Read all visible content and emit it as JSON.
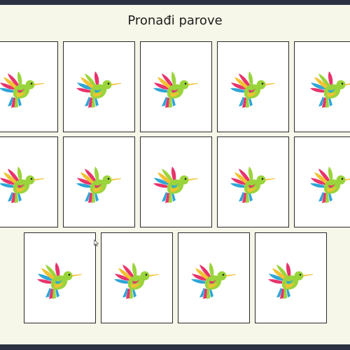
{
  "game": {
    "title": "Pronađi parove"
  },
  "cards": [
    {
      "row": 1,
      "face": "hummingbird-icon",
      "state": "face-down"
    },
    {
      "row": 1,
      "face": "hummingbird-icon",
      "state": "face-down"
    },
    {
      "row": 1,
      "face": "hummingbird-icon",
      "state": "face-down"
    },
    {
      "row": 1,
      "face": "hummingbird-icon",
      "state": "face-down"
    },
    {
      "row": 1,
      "face": "hummingbird-icon",
      "state": "face-down"
    },
    {
      "row": 2,
      "face": "hummingbird-icon",
      "state": "face-down"
    },
    {
      "row": 2,
      "face": "hummingbird-icon",
      "state": "face-down"
    },
    {
      "row": 2,
      "face": "hummingbird-icon",
      "state": "face-down"
    },
    {
      "row": 2,
      "face": "hummingbird-icon",
      "state": "face-down"
    },
    {
      "row": 2,
      "face": "hummingbird-icon",
      "state": "face-down"
    },
    {
      "row": 3,
      "face": "hummingbird-icon",
      "state": "face-down"
    },
    {
      "row": 3,
      "face": "hummingbird-icon",
      "state": "face-down"
    },
    {
      "row": 3,
      "face": "hummingbird-icon",
      "state": "face-down"
    },
    {
      "row": 3,
      "face": "hummingbird-icon",
      "state": "face-down"
    }
  ],
  "colors": {
    "background": "#f6f6e9",
    "card_face": "#ffffff",
    "card_border": "#2a2a2a",
    "frame": "#2b3140"
  }
}
